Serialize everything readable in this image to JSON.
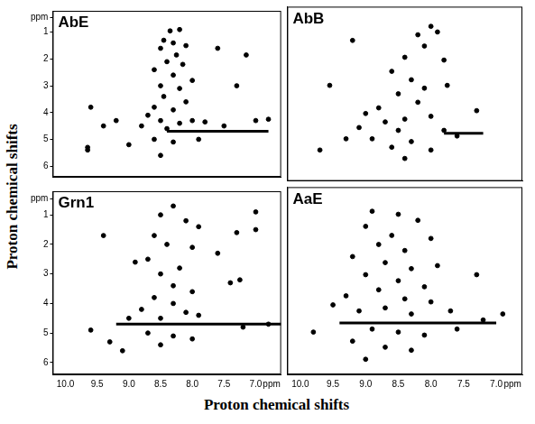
{
  "x_label": "Proton chemical shifts",
  "y_label": "Proton chemical shifts",
  "chart_data": [
    {
      "type": "scatter",
      "title": "AbE",
      "tick_labels": "y",
      "grid": false,
      "xlim": [
        10.2,
        6.6
      ],
      "ylim": [
        0.2,
        6.4
      ],
      "xticks": [
        {
          "value": 10,
          "label": "10.0"
        },
        9.5,
        {
          "value": 9,
          "label": "9.0"
        },
        8.5,
        {
          "value": 8,
          "label": "8.0"
        },
        7.5,
        {
          "value": 7,
          "label": "7.0"
        },
        {
          "value": 6.75,
          "label": "ppm"
        }
      ],
      "yticks": [
        {
          "value": 0.45,
          "label": "ppm"
        },
        1,
        2,
        3,
        4,
        5,
        6
      ],
      "series": [
        {
          "type": "scatter",
          "marker": "circle",
          "color": "#000000",
          "x": [
            8.2,
            8.35,
            8.45,
            8.3,
            8.1,
            8.5,
            8.25,
            7.6,
            7.15,
            8.4,
            8.15,
            8.6,
            8.3,
            8.0,
            8.5,
            8.2,
            7.3,
            8.45,
            8.1,
            8.6,
            8.3,
            8.7,
            8.5,
            8.2,
            8.0,
            7.8,
            8.8,
            9.2,
            9.6,
            9.4,
            8.4,
            7.5,
            7.0,
            6.8,
            8.6,
            8.3,
            9.0,
            9.65,
            9.65,
            8.5,
            7.9
          ],
          "values": [
            0.9,
            0.95,
            1.3,
            1.4,
            1.5,
            1.6,
            1.85,
            1.6,
            1.85,
            2.1,
            2.2,
            2.4,
            2.6,
            2.8,
            3.0,
            3.1,
            3.0,
            3.4,
            3.6,
            3.8,
            3.9,
            4.1,
            4.3,
            4.4,
            4.3,
            4.35,
            4.5,
            4.3,
            3.8,
            4.5,
            4.6,
            4.5,
            4.3,
            4.25,
            5.0,
            5.1,
            5.2,
            5.4,
            5.3,
            5.6,
            5.0
          ]
        },
        {
          "type": "line",
          "line_style": "solid",
          "color": "#000000",
          "x": [
            8.4,
            6.8
          ],
          "values": [
            4.7,
            4.7
          ]
        }
      ]
    },
    {
      "type": "scatter",
      "title": "AbB",
      "tick_labels": false,
      "grid": false,
      "xlim": [
        10.2,
        6.6
      ],
      "ylim": [
        0.2,
        6.4
      ],
      "xticks": [
        {
          "value": 10,
          "label": "10.0"
        },
        9.5,
        {
          "value": 9,
          "label": "9.0"
        },
        8.5,
        {
          "value": 8,
          "label": "8.0"
        },
        7.5,
        {
          "value": 7,
          "label": "7.0"
        },
        {
          "value": 6.75,
          "label": "ppm"
        }
      ],
      "yticks": [
        {
          "value": 0.45,
          "label": "ppm"
        },
        1,
        2,
        3,
        4,
        5,
        6
      ],
      "series": [
        {
          "type": "scatter",
          "marker": "circle",
          "color": "#000000",
          "x": [
            8.0,
            7.9,
            8.2,
            8.1,
            9.2,
            8.4,
            7.8,
            8.6,
            8.3,
            8.1,
            7.75,
            9.55,
            8.5,
            8.2,
            8.8,
            9.0,
            8.4,
            8.0,
            8.7,
            9.1,
            8.5,
            7.8,
            7.3,
            8.9,
            8.3,
            8.6,
            8.0,
            8.4,
            9.7,
            7.6,
            9.3
          ],
          "values": [
            0.9,
            1.1,
            1.2,
            1.6,
            1.4,
            2.0,
            2.1,
            2.5,
            2.8,
            3.1,
            3.0,
            3.0,
            3.3,
            3.6,
            3.8,
            4.0,
            4.2,
            4.1,
            4.3,
            4.5,
            4.6,
            4.6,
            3.9,
            4.9,
            5.0,
            5.2,
            5.3,
            5.6,
            5.3,
            4.8,
            4.9
          ]
        },
        {
          "type": "line",
          "line_style": "solid",
          "color": "#000000",
          "x": [
            7.8,
            7.2
          ],
          "values": [
            4.7,
            4.7
          ]
        }
      ]
    },
    {
      "type": "scatter",
      "title": "Grn1",
      "grid": false,
      "xlim": [
        10.2,
        6.6
      ],
      "ylim": [
        0.2,
        6.4
      ],
      "xticks": [
        {
          "value": 10,
          "label": "10.0"
        },
        9.5,
        {
          "value": 9,
          "label": "9.0"
        },
        8.5,
        {
          "value": 8,
          "label": "8.0"
        },
        7.5,
        {
          "value": 7,
          "label": "7.0"
        },
        {
          "value": 6.75,
          "label": "ppm"
        }
      ],
      "yticks": [
        {
          "value": 0.45,
          "label": "ppm"
        },
        1,
        2,
        3,
        4,
        5,
        6
      ],
      "series": [
        {
          "type": "scatter",
          "marker": "circle",
          "color": "#000000",
          "x": [
            8.3,
            8.5,
            8.1,
            7.9,
            8.6,
            9.4,
            7.3,
            7.0,
            7.0,
            8.4,
            8.0,
            7.6,
            8.7,
            8.2,
            8.9,
            8.5,
            7.25,
            7.4,
            8.3,
            8.0,
            8.6,
            8.3,
            8.8,
            8.1,
            7.9,
            8.5,
            9.0,
            9.6,
            8.7,
            8.3,
            9.3,
            8.0,
            8.5,
            9.1,
            7.2,
            6.8
          ],
          "values": [
            0.7,
            1.0,
            1.2,
            1.4,
            1.7,
            1.7,
            1.6,
            0.9,
            1.5,
            2.0,
            2.1,
            2.3,
            2.5,
            2.8,
            2.6,
            3.0,
            3.2,
            3.3,
            3.4,
            3.6,
            3.8,
            4.0,
            4.2,
            4.3,
            4.4,
            4.5,
            4.5,
            4.9,
            5.0,
            5.1,
            5.3,
            5.2,
            5.4,
            5.6,
            4.8,
            4.7
          ]
        },
        {
          "type": "line",
          "line_style": "solid",
          "color": "#000000",
          "x": [
            9.2,
            6.6
          ],
          "values": [
            4.7,
            4.7
          ]
        }
      ]
    },
    {
      "type": "scatter",
      "title": "AaE",
      "tick_labels": "x",
      "grid": false,
      "xlim": [
        10.2,
        6.6
      ],
      "ylim": [
        0.2,
        6.4
      ],
      "xticks": [
        {
          "value": 10,
          "label": "10.0"
        },
        9.5,
        {
          "value": 9,
          "label": "9.0"
        },
        8.5,
        {
          "value": 8,
          "label": "8.0"
        },
        7.5,
        {
          "value": 7,
          "label": "7.0"
        },
        {
          "value": 6.75,
          "label": "ppm"
        }
      ],
      "yticks": [
        {
          "value": 0.45,
          "label": "ppm"
        },
        1,
        2,
        3,
        4,
        5,
        6
      ],
      "series": [
        {
          "type": "scatter",
          "marker": "circle",
          "color": "#000000",
          "x": [
            8.9,
            8.5,
            8.2,
            9.0,
            8.6,
            8.0,
            8.8,
            8.4,
            9.2,
            8.7,
            8.3,
            7.9,
            9.0,
            8.5,
            8.1,
            8.8,
            9.3,
            8.4,
            8.0,
            8.7,
            9.1,
            8.3,
            7.7,
            9.5,
            8.9,
            8.5,
            8.1,
            9.2,
            8.7,
            8.3,
            9.0,
            7.6,
            9.8,
            7.3,
            7.2,
            6.9
          ],
          "values": [
            1.0,
            1.1,
            1.3,
            1.5,
            1.8,
            1.9,
            2.1,
            2.3,
            2.5,
            2.7,
            2.9,
            2.8,
            3.1,
            3.3,
            3.5,
            3.6,
            3.8,
            3.9,
            4.0,
            4.2,
            4.3,
            4.4,
            4.3,
            4.1,
            4.9,
            5.0,
            5.1,
            5.3,
            5.5,
            5.6,
            5.9,
            4.9,
            5.0,
            3.1,
            4.6,
            4.4
          ]
        },
        {
          "type": "line",
          "line_style": "solid",
          "color": "#000000",
          "x": [
            9.4,
            7.0
          ],
          "values": [
            4.7,
            4.7
          ]
        }
      ]
    }
  ]
}
